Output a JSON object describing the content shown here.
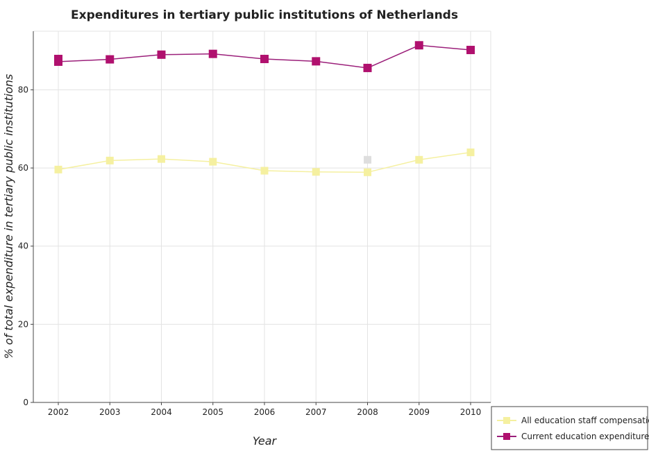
{
  "chart_data": {
    "type": "line",
    "title": "Expenditures in tertiary public institutions of Netherlands",
    "xlabel": "Year",
    "ylabel": "% of total expenditure in tertiary public institutions",
    "categories": [
      "2002",
      "2003",
      "2004",
      "2005",
      "2006",
      "2007",
      "2008",
      "2009",
      "2010"
    ],
    "ylim": [
      0,
      95
    ],
    "yticks": [
      0,
      20,
      40,
      60,
      80
    ],
    "series": [
      {
        "name": "All education staff compensation",
        "color": "#f5f0a0",
        "marker_color": "#f5f0a0",
        "values": [
          59.6,
          61.9,
          62.3,
          61.6,
          59.3,
          59.0,
          58.9,
          62.1,
          64.0
        ]
      },
      {
        "name": "Current education expenditure",
        "color": "#9b1f7a",
        "marker_color": "#b0106e",
        "values": [
          87.2,
          87.8,
          89.0,
          89.2,
          87.9,
          87.3,
          85.6,
          91.4,
          90.2
        ]
      }
    ],
    "extra_markers": [
      {
        "series": "All education staff compensation",
        "year": "2008",
        "value": 62.1,
        "color": "#dedede"
      }
    ],
    "extra_markers_series2": [
      {
        "series": "Current education expenditure",
        "year": "2002",
        "value": 87.9
      }
    ],
    "legend": {
      "position": "bottom-right",
      "entries": [
        "All education staff compensation",
        "Current education expenditure"
      ]
    },
    "grid": true
  }
}
